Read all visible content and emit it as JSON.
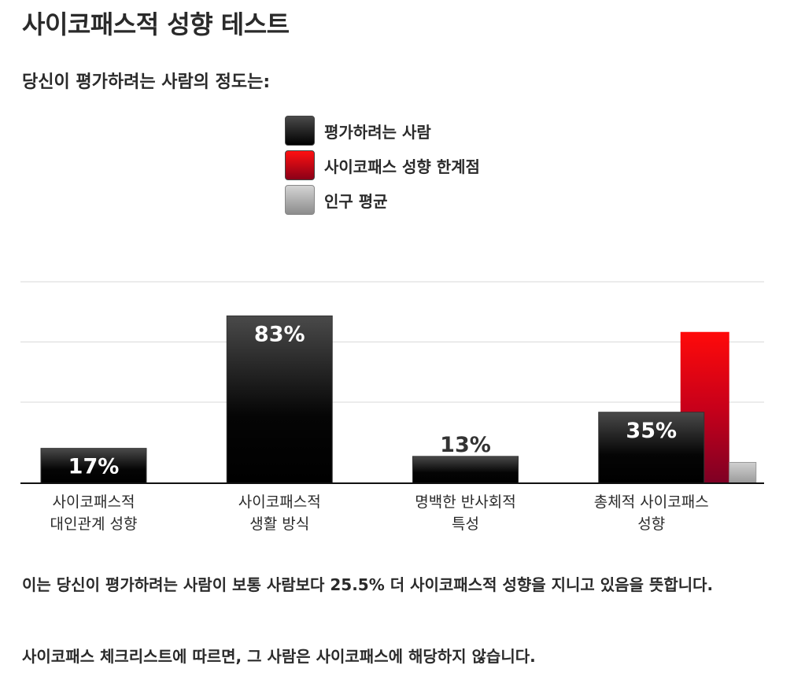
{
  "page": {
    "title": "사이코패스적 성향 테스트",
    "subtitle": "당신이 평가하려는 사람의 정도는:",
    "result_text": "이는 당신이 평가하려는 사람이 보통 사람보다 25.5% 더 사이코패스적 성향을 지니고 있음을 뜻합니다.",
    "checklist_text": "사이코패스 체크리스트에 따르면, 그 사람은 사이코패스에 해당하지 않습니다."
  },
  "legend": {
    "items": [
      {
        "label": "평가하려는 사람",
        "swatch": "black"
      },
      {
        "label": "사이코패스 성향 한계점",
        "swatch": "red"
      },
      {
        "label": "인구 평균",
        "swatch": "gray"
      }
    ]
  },
  "colors": {
    "person": "#000000",
    "threshold": "#e00000",
    "average": "#a8a8a8",
    "gridline": "#d9d9d9",
    "axis": "#111111"
  },
  "chart_data": {
    "type": "bar",
    "title": "",
    "xlabel": "",
    "ylabel": "",
    "ylim": [
      0,
      100
    ],
    "grid": true,
    "legend_placement": "top-center",
    "categories": [
      [
        "사이코패스적",
        "대인관계 성향"
      ],
      [
        "사이코패스적",
        "생활 방식"
      ],
      [
        "명백한 반사회적",
        "특성"
      ],
      [
        "총체적 사이코패스",
        "성향"
      ]
    ],
    "series": [
      {
        "name": "평가하려는 사람",
        "values": [
          17,
          83,
          13,
          35
        ],
        "labels": [
          "17%",
          "83%",
          "13%",
          "35%"
        ]
      },
      {
        "name": "사이코패스 성향 한계점",
        "values": [
          null,
          null,
          null,
          75
        ]
      },
      {
        "name": "인구 평균",
        "values": [
          null,
          null,
          null,
          10
        ]
      }
    ]
  }
}
